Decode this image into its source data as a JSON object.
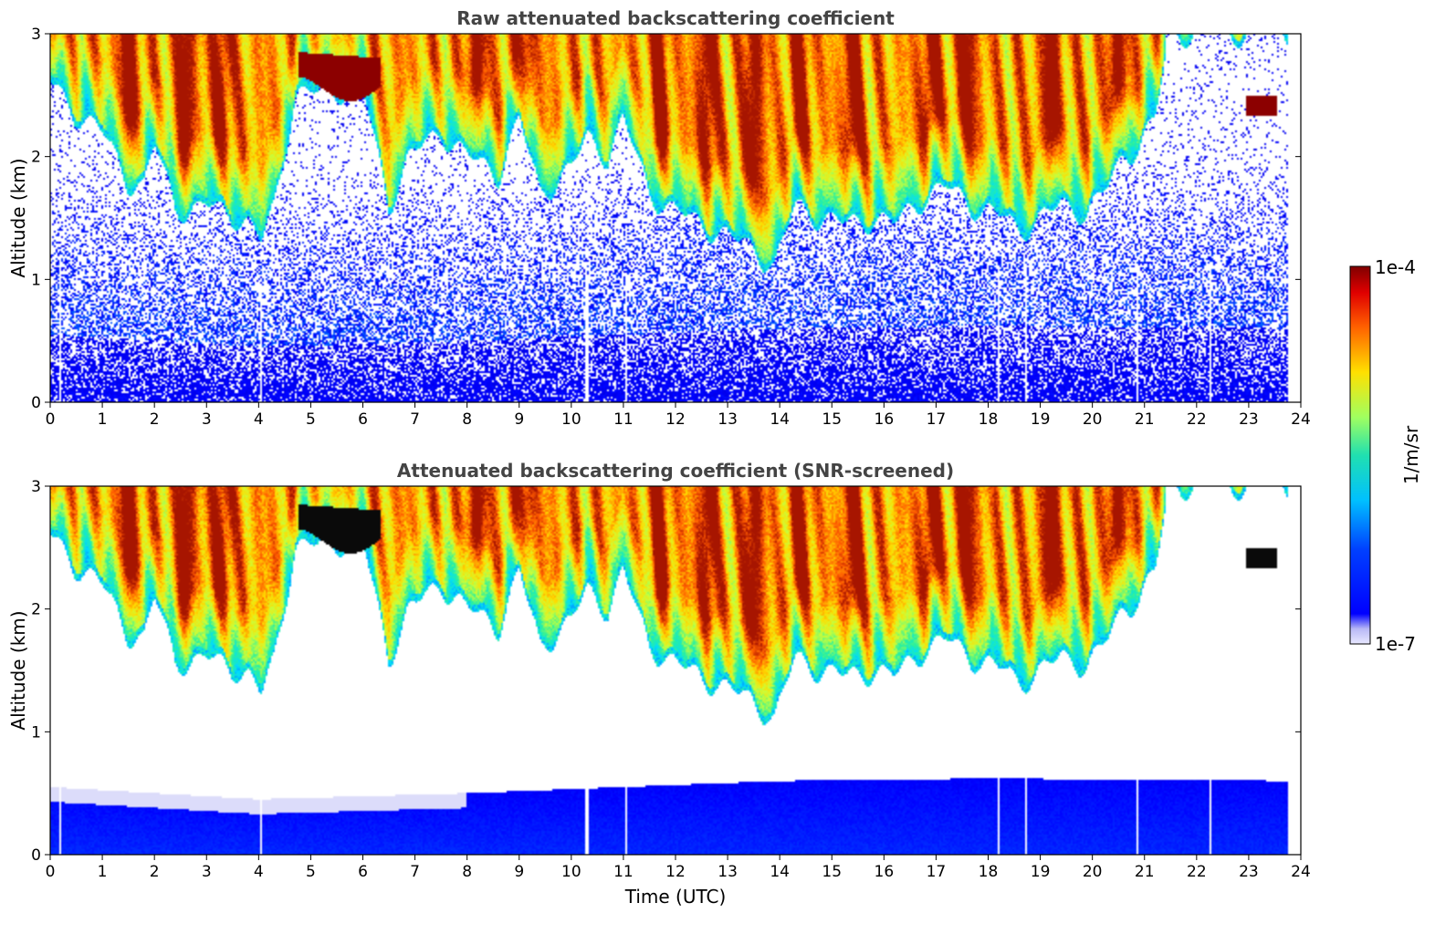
{
  "chart_data": [
    {
      "type": "heatmap",
      "title": "Raw attenuated backscattering coefficient",
      "xlabel": "",
      "ylabel": "Altitude (km)",
      "xlim": [
        0,
        24
      ],
      "ylim": [
        0,
        3
      ],
      "x_ticks": [
        "0",
        "1",
        "2",
        "3",
        "4",
        "5",
        "6",
        "7",
        "8",
        "9",
        "10",
        "11",
        "12",
        "13",
        "14",
        "15",
        "16",
        "17",
        "18",
        "19",
        "20",
        "21",
        "22",
        "23",
        "24"
      ],
      "y_ticks": [
        "0",
        "1",
        "2",
        "3"
      ],
      "screened": false
    },
    {
      "type": "heatmap",
      "title": "Attenuated backscattering coefficient (SNR-screened)",
      "xlabel": "Time (UTC)",
      "ylabel": "Altitude (km)",
      "xlim": [
        0,
        24
      ],
      "ylim": [
        0,
        3
      ],
      "x_ticks": [
        "0",
        "1",
        "2",
        "3",
        "4",
        "5",
        "6",
        "7",
        "8",
        "9",
        "10",
        "11",
        "12",
        "13",
        "14",
        "15",
        "16",
        "17",
        "18",
        "19",
        "20",
        "21",
        "22",
        "23",
        "24"
      ],
      "y_ticks": [
        "0",
        "1",
        "2",
        "3"
      ],
      "screened": true
    }
  ],
  "colorbar": {
    "label": "1/m/sr",
    "max_label": "1e-4",
    "min_label": "1e-7",
    "colormap": "jet",
    "scale": "log"
  },
  "data_end_hour": 23.75,
  "gap_times": [
    0.18,
    4.05,
    10.3,
    11.05,
    18.2,
    18.72,
    20.87,
    22.28
  ],
  "cloud_profile": [
    [
      0.0,
      2.6
    ],
    [
      0.5,
      2.35
    ],
    [
      1.0,
      2.2
    ],
    [
      1.5,
      1.8
    ],
    [
      1.8,
      1.75
    ],
    [
      2.0,
      2.1
    ],
    [
      2.4,
      1.6
    ],
    [
      2.7,
      1.55
    ],
    [
      3.0,
      1.6
    ],
    [
      3.4,
      1.55
    ],
    [
      3.8,
      1.45
    ],
    [
      4.05,
      1.3
    ],
    [
      4.3,
      1.6
    ],
    [
      4.7,
      2.5
    ],
    [
      6.0,
      2.55
    ],
    [
      6.5,
      1.6
    ],
    [
      6.9,
      2.0
    ],
    [
      7.5,
      2.2
    ],
    [
      8.0,
      2.0
    ],
    [
      8.6,
      1.85
    ],
    [
      9.0,
      2.3
    ],
    [
      9.4,
      1.7
    ],
    [
      10.0,
      1.9
    ],
    [
      10.3,
      2.15
    ],
    [
      10.7,
      2.0
    ],
    [
      11.0,
      2.3
    ],
    [
      11.5,
      1.7
    ],
    [
      12.0,
      1.55
    ],
    [
      12.5,
      1.45
    ],
    [
      13.0,
      1.35
    ],
    [
      13.5,
      1.25
    ],
    [
      13.9,
      1.1
    ],
    [
      14.3,
      1.6
    ],
    [
      14.8,
      1.5
    ],
    [
      15.3,
      1.45
    ],
    [
      15.8,
      1.5
    ],
    [
      16.2,
      1.45
    ],
    [
      16.7,
      1.65
    ],
    [
      17.2,
      1.75
    ],
    [
      17.7,
      1.6
    ],
    [
      18.3,
      1.5
    ],
    [
      18.6,
      1.4
    ],
    [
      19.0,
      1.5
    ],
    [
      19.4,
      1.6
    ],
    [
      19.9,
      1.55
    ],
    [
      20.3,
      1.75
    ],
    [
      20.6,
      2.0
    ],
    [
      20.9,
      2.1
    ],
    [
      21.2,
      2.3
    ],
    [
      21.5,
      3.0
    ]
  ],
  "pbl_top": [
    [
      0,
      0.55
    ],
    [
      4,
      0.45
    ],
    [
      8,
      0.5
    ],
    [
      11,
      0.55
    ],
    [
      14,
      0.6
    ],
    [
      18,
      0.62
    ],
    [
      23.75,
      0.6
    ]
  ]
}
